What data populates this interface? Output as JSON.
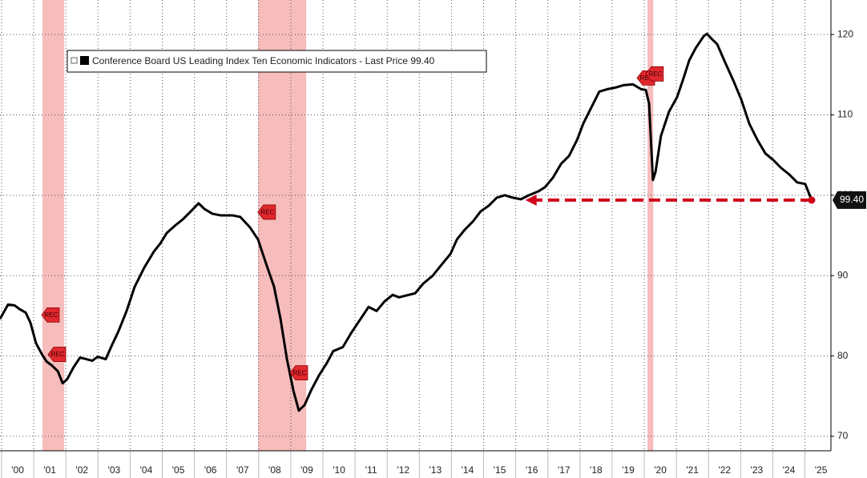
{
  "chart_data": {
    "type": "line",
    "legend": "Conference Board US Leading Index Ten Economic Indicators - Last Price 99.40",
    "xlim": [
      1999.95,
      2025.81
    ],
    "ylim": [
      68.2,
      124.3
    ],
    "grid": true,
    "xticks": [
      {
        "value": 2000,
        "label": "'00"
      },
      {
        "value": 2001,
        "label": "'01"
      },
      {
        "value": 2002,
        "label": "'02"
      },
      {
        "value": 2003,
        "label": "'03"
      },
      {
        "value": 2004,
        "label": "'04"
      },
      {
        "value": 2005,
        "label": "'05"
      },
      {
        "value": 2006,
        "label": "'06"
      },
      {
        "value": 2007,
        "label": "'07"
      },
      {
        "value": 2008,
        "label": "'08"
      },
      {
        "value": 2009,
        "label": "'09"
      },
      {
        "value": 2010,
        "label": "'10"
      },
      {
        "value": 2011,
        "label": "'11"
      },
      {
        "value": 2012,
        "label": "'12"
      },
      {
        "value": 2013,
        "label": "'13"
      },
      {
        "value": 2014,
        "label": "'14"
      },
      {
        "value": 2015,
        "label": "'15"
      },
      {
        "value": 2016,
        "label": "'16"
      },
      {
        "value": 2017,
        "label": "'17"
      },
      {
        "value": 2018,
        "label": "'18"
      },
      {
        "value": 2019,
        "label": "'19"
      },
      {
        "value": 2020,
        "label": "'20"
      },
      {
        "value": 2021,
        "label": "'21"
      },
      {
        "value": 2022,
        "label": "'22"
      },
      {
        "value": 2023,
        "label": "'23"
      },
      {
        "value": 2024,
        "label": "'24"
      },
      {
        "value": 2025,
        "label": "'25"
      }
    ],
    "yticks": [
      70,
      80,
      90,
      100,
      110,
      120
    ],
    "recessions": [
      [
        2001.27,
        2001.95
      ],
      [
        2007.98,
        2009.48
      ],
      [
        2020.1,
        2020.28
      ]
    ],
    "recession_color": "#f4a6a6",
    "markers": [
      {
        "x": 2001.52,
        "value": 85.1,
        "label": "REC"
      },
      {
        "x": 2001.72,
        "value": 80.2,
        "label": "REC"
      },
      {
        "x": 2008.25,
        "value": 97.9,
        "label": "REC"
      },
      {
        "x": 2009.25,
        "value": 77.9,
        "label": "REC"
      },
      {
        "x": 2020.05,
        "value": 114.6,
        "label": "REC"
      },
      {
        "x": 2020.32,
        "value": 115.1,
        "label": "REC"
      }
    ],
    "last_price": {
      "value": 99.4,
      "label": "99.40"
    },
    "arrow_to_x": 2016.3,
    "arrow_color": "#d0021b",
    "series": [
      {
        "name": "Conference Board US Leading Index Ten Economic Indicators",
        "color": "#000000",
        "x": [
          1999.95,
          2000.2,
          2000.4,
          2000.57,
          2000.75,
          2000.9,
          2001.07,
          2001.27,
          2001.4,
          2001.57,
          2001.75,
          2001.9,
          2002.04,
          2002.24,
          2002.44,
          2002.64,
          2002.82,
          2002.99,
          2003.24,
          2003.44,
          2003.64,
          2003.89,
          2004.14,
          2004.44,
          2004.74,
          2004.94,
          2005.14,
          2005.39,
          2005.64,
          2005.89,
          2006.13,
          2006.31,
          2006.56,
          2006.81,
          2007.18,
          2007.43,
          2007.73,
          2007.98,
          2008.23,
          2008.48,
          2008.68,
          2008.88,
          2009.08,
          2009.25,
          2009.43,
          2009.63,
          2009.88,
          2010.12,
          2010.32,
          2010.62,
          2010.87,
          2011.17,
          2011.42,
          2011.67,
          2011.92,
          2012.17,
          2012.37,
          2012.67,
          2012.87,
          2013.12,
          2013.42,
          2013.72,
          2013.97,
          2014.17,
          2014.41,
          2014.66,
          2014.91,
          2015.16,
          2015.41,
          2015.66,
          2015.91,
          2016.16,
          2016.41,
          2016.71,
          2016.91,
          2017.16,
          2017.41,
          2017.66,
          2017.91,
          2018.1,
          2018.35,
          2018.6,
          2018.85,
          2019.1,
          2019.35,
          2019.65,
          2019.9,
          2020.05,
          2020.15,
          2020.27,
          2020.35,
          2020.52,
          2020.77,
          2021.02,
          2021.2,
          2021.4,
          2021.6,
          2021.85,
          2021.95,
          2022.09,
          2022.27,
          2022.52,
          2022.77,
          2023.02,
          2023.27,
          2023.52,
          2023.77,
          2024.01,
          2024.26,
          2024.51,
          2024.76,
          2025.01,
          2025.21
        ],
        "values": [
          84.6,
          86.4,
          86.3,
          85.8,
          85.4,
          84.1,
          81.6,
          80.1,
          79.3,
          78.8,
          78.1,
          76.6,
          77.1,
          78.6,
          79.8,
          79.6,
          79.4,
          79.9,
          79.6,
          81.4,
          83.1,
          85.6,
          88.6,
          91.0,
          93.0,
          94.0,
          95.3,
          96.2,
          97.0,
          98.0,
          99.0,
          98.3,
          97.7,
          97.5,
          97.5,
          97.3,
          96.0,
          94.5,
          91.5,
          88.6,
          84.6,
          79.6,
          75.7,
          73.2,
          73.9,
          75.7,
          77.6,
          79.1,
          80.6,
          81.1,
          82.8,
          84.6,
          86.1,
          85.6,
          86.8,
          87.6,
          87.3,
          87.6,
          87.8,
          89.0,
          90.0,
          91.5,
          92.7,
          94.5,
          95.7,
          96.7,
          98.0,
          98.7,
          99.7,
          100.0,
          99.7,
          99.5,
          100.0,
          100.5,
          101.0,
          102.2,
          103.9,
          104.9,
          106.9,
          108.9,
          110.9,
          112.9,
          113.2,
          113.4,
          113.7,
          113.8,
          113.2,
          113.1,
          111.4,
          101.9,
          102.9,
          107.4,
          110.4,
          112.2,
          114.3,
          116.8,
          118.3,
          119.8,
          120.1,
          119.5,
          118.8,
          116.5,
          114.3,
          111.9,
          108.9,
          106.9,
          105.2,
          104.4,
          103.4,
          102.6,
          101.6,
          101.4,
          99.4
        ]
      }
    ]
  }
}
